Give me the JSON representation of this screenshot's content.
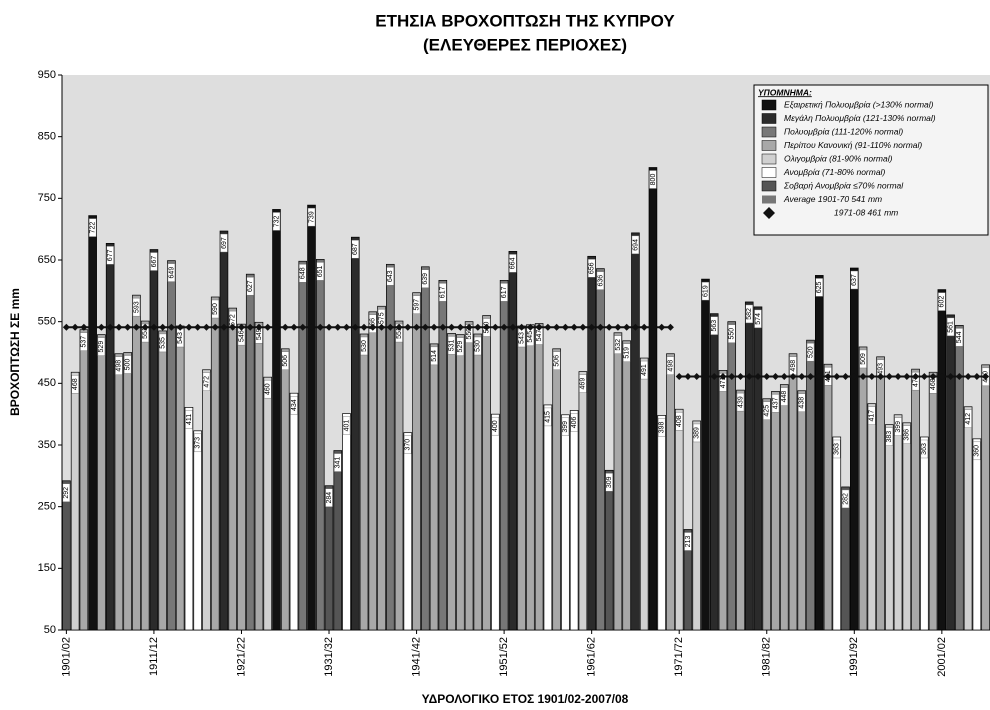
{
  "chart_data": {
    "type": "bar",
    "title": "ΕΤΗΣΙΑ ΒΡΟΧΟΠΤΩΣΗ ΤΗΣ ΚΥΠΡΟΥ",
    "subtitle": "(ΕΛΕΥΘΕΡΕΣ ΠΕΡΙΟΧΕΣ)",
    "x_label": "ΥΔΡΟΛΟΓΙΚΟ ΕΤΟΣ 1901/02-2007/08",
    "y_label": "ΒΡΟΧΟΠΤΩΣΗ ΣΕ mm",
    "categories": [
      "1901/02",
      null,
      null,
      null,
      null,
      null,
      null,
      null,
      null,
      null,
      "1911/12",
      null,
      null,
      null,
      null,
      null,
      null,
      null,
      null,
      null,
      "1921/22",
      null,
      null,
      null,
      null,
      null,
      null,
      null,
      null,
      null,
      "1931/32",
      null,
      null,
      null,
      null,
      null,
      null,
      null,
      null,
      null,
      "1941/42",
      null,
      null,
      null,
      null,
      null,
      null,
      null,
      null,
      null,
      "1951/52",
      null,
      null,
      null,
      null,
      null,
      null,
      null,
      null,
      null,
      "1961/62",
      null,
      null,
      null,
      null,
      null,
      null,
      null,
      null,
      null,
      "1971/72",
      null,
      null,
      null,
      null,
      null,
      null,
      null,
      null,
      null,
      "1981/82",
      null,
      null,
      null,
      null,
      null,
      null,
      null,
      null,
      null,
      "1991/92",
      null,
      null,
      null,
      null,
      null,
      null,
      null,
      null,
      null,
      "2001/02",
      null,
      null,
      null,
      null,
      null
    ],
    "values": [
      292,
      468,
      537,
      722,
      529,
      677,
      498,
      500,
      593,
      551,
      667,
      535,
      649,
      543,
      411,
      373,
      472,
      590,
      697,
      572,
      546,
      627,
      549,
      460,
      732,
      506,
      434,
      648,
      739,
      651,
      284,
      341,
      401,
      687,
      530,
      566,
      575,
      643,
      551,
      370,
      597,
      639,
      514,
      617,
      531,
      529,
      550,
      530,
      560,
      400,
      617,
      664,
      543,
      545,
      547,
      415,
      506,
      399,
      406,
      469,
      656,
      636,
      309,
      532,
      519,
      694,
      491,
      800,
      398,
      498,
      408,
      213,
      389,
      619,
      563,
      471,
      550,
      439,
      582,
      574,
      425,
      437,
      448,
      498,
      438,
      520,
      625,
      481,
      363,
      282,
      637,
      509,
      417,
      493,
      383,
      399,
      386,
      473,
      363,
      468,
      602,
      561,
      544,
      412,
      360,
      480
    ],
    "colors": [
      "#555555",
      "#d0d0d0",
      "#a8a8a8",
      "#111111",
      "#a8a8a8",
      "#2b2b2b",
      "#a8a8a8",
      "#a8a8a8",
      "#a8a8a8",
      "#a8a8a8",
      "#2b2b2b",
      "#a8a8a8",
      "#777777",
      "#a8a8a8",
      "#ffffff",
      "#ffffff",
      "#d0d0d0",
      "#a8a8a8",
      "#2b2b2b",
      "#a8a8a8",
      "#a8a8a8",
      "#777777",
      "#a8a8a8",
      "#d0d0d0",
      "#111111",
      "#a8a8a8",
      "#ffffff",
      "#777777",
      "#111111",
      "#777777",
      "#555555",
      "#555555",
      "#ffffff",
      "#2b2b2b",
      "#a8a8a8",
      "#a8a8a8",
      "#a8a8a8",
      "#777777",
      "#a8a8a8",
      "#ffffff",
      "#a8a8a8",
      "#777777",
      "#a8a8a8",
      "#777777",
      "#a8a8a8",
      "#a8a8a8",
      "#a8a8a8",
      "#a8a8a8",
      "#a8a8a8",
      "#ffffff",
      "#777777",
      "#2b2b2b",
      "#a8a8a8",
      "#a8a8a8",
      "#a8a8a8",
      "#ffffff",
      "#a8a8a8",
      "#ffffff",
      "#ffffff",
      "#d0d0d0",
      "#2b2b2b",
      "#777777",
      "#555555",
      "#a8a8a8",
      "#a8a8a8",
      "#2b2b2b",
      "#d0d0d0",
      "#111111",
      "#ffffff",
      "#a8a8a8",
      "#d0d0d0",
      "#555555",
      "#d0d0d0",
      "#111111",
      "#2b2b2b",
      "#a8a8a8",
      "#777777",
      "#a8a8a8",
      "#2b2b2b",
      "#2b2b2b",
      "#a8a8a8",
      "#a8a8a8",
      "#a8a8a8",
      "#a8a8a8",
      "#a8a8a8",
      "#777777",
      "#111111",
      "#a8a8a8",
      "#ffffff",
      "#555555",
      "#111111",
      "#a8a8a8",
      "#d0d0d0",
      "#a8a8a8",
      "#d0d0d0",
      "#d0d0d0",
      "#d0d0d0",
      "#a8a8a8",
      "#ffffff",
      "#a8a8a8",
      "#111111",
      "#2b2b2b",
      "#777777",
      "#d0d0d0",
      "#ffffff",
      "#a8a8a8"
    ],
    "legend_title": "ΥΠΟΜΝΗΜΑ:",
    "classes": [
      {
        "name": "Εξαιρετική Πολυομβρία  (>130% normal)",
        "color": "#111111"
      },
      {
        "name": "Μεγάλη Πολυομβρία (121-130% normal)",
        "color": "#2b2b2b"
      },
      {
        "name": "Πολυομβρία (111-120% normal)",
        "color": "#777777"
      },
      {
        "name": "Περίπου Κανονική (91-110% normal)",
        "color": "#a8a8a8"
      },
      {
        "name": "Ολιγομβρία (81-90% normal)",
        "color": "#d0d0d0"
      },
      {
        "name": "Ανομβρία (71-80% normal)",
        "color": "#ffffff"
      },
      {
        "name": "Σοβαρή Ανομβρία ≤70% normal",
        "color": "#555555"
      }
    ],
    "series": [
      {
        "name": "Average 1901-70 541 mm",
        "color": "#111111",
        "values": [
          541,
          541,
          541,
          541,
          541,
          541,
          541,
          541,
          541,
          541,
          541,
          541,
          541,
          541,
          541,
          541,
          541,
          541,
          541,
          541,
          541,
          541,
          541,
          541,
          541,
          541,
          541,
          541,
          541,
          541,
          541,
          541,
          541,
          541,
          541,
          541,
          541,
          541,
          541,
          541,
          541,
          541,
          541,
          541,
          541,
          541,
          541,
          541,
          541,
          541,
          541,
          541,
          541,
          541,
          541,
          541,
          541,
          541,
          541,
          541,
          541,
          541,
          541,
          541,
          541,
          541,
          541,
          541,
          541,
          541,
          null,
          null,
          null,
          null,
          null,
          null,
          null,
          null,
          null,
          null,
          null,
          null,
          null,
          null,
          null,
          null,
          null,
          null,
          null,
          null,
          null,
          null,
          null,
          null,
          null,
          null,
          null,
          null,
          null,
          null,
          null,
          null,
          null,
          null,
          null,
          null
        ]
      },
      {
        "name": "1971-08 461 mm",
        "color": "#111111",
        "values": [
          null,
          null,
          null,
          null,
          null,
          null,
          null,
          null,
          null,
          null,
          null,
          null,
          null,
          null,
          null,
          null,
          null,
          null,
          null,
          null,
          null,
          null,
          null,
          null,
          null,
          null,
          null,
          null,
          null,
          null,
          null,
          null,
          null,
          null,
          null,
          null,
          null,
          null,
          null,
          null,
          null,
          null,
          null,
          null,
          null,
          null,
          null,
          null,
          null,
          null,
          null,
          null,
          null,
          null,
          null,
          null,
          null,
          null,
          null,
          null,
          null,
          null,
          null,
          null,
          null,
          null,
          null,
          null,
          null,
          null,
          461,
          461,
          461,
          461,
          461,
          461,
          461,
          461,
          461,
          461,
          461,
          461,
          461,
          461,
          461,
          461,
          461,
          461,
          461,
          461,
          461,
          461,
          461,
          461,
          461,
          461,
          461,
          461,
          461,
          461,
          461,
          461,
          461,
          461,
          461,
          461
        ]
      }
    ],
    "ylim": [
      50,
      950
    ],
    "yticks": [
      50,
      150,
      250,
      350,
      450,
      550,
      650,
      750,
      850,
      950
    ],
    "grid": false
  }
}
